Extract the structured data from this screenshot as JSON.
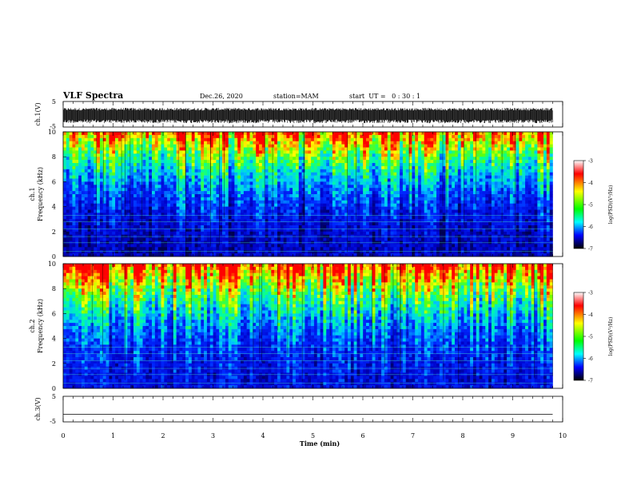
{
  "header": {
    "title": "VLF Spectra",
    "date": "Dec.26, 2020",
    "station": "station=MAM",
    "start": "start  UT =   0 : 30 : 1"
  },
  "colorbar": {
    "label": "log(PSD)(V²/Hz)",
    "ticks": [
      "-3",
      "-4",
      "-5",
      "-6",
      "-7"
    ],
    "colors": [
      "#ffffff",
      "#ff0000",
      "#ffff00",
      "#00ff00",
      "#00ffff",
      "#0000ff",
      "#000000"
    ]
  },
  "chart_data": [
    {
      "type": "line",
      "panel": "ch1-waveform",
      "ylabel": "ch.1(V)",
      "ylim": [
        -5,
        5
      ],
      "y_ticks": [
        "5",
        "-5"
      ],
      "x_ticks": [
        "0",
        "1",
        "2",
        "3",
        "4",
        "5",
        "6",
        "7",
        "8",
        "9",
        "10"
      ],
      "xlim": [
        0,
        10
      ],
      "data_end_min": 9.8,
      "amplitude_range": [
        -3.5,
        2.5
      ]
    },
    {
      "type": "heatmap",
      "panel": "ch1-spectrogram",
      "ylabel_channel": "ch.1",
      "ylabel": "Frequency (kHz)",
      "ylim": [
        0,
        10
      ],
      "y_ticks": [
        "0",
        "2",
        "4",
        "6",
        "8",
        "10"
      ],
      "xlim": [
        0,
        10
      ],
      "data_end_min": 9.8,
      "z_range": [
        -7,
        -3
      ]
    },
    {
      "type": "heatmap",
      "panel": "ch2-spectrogram",
      "ylabel_channel": "ch.2",
      "ylabel": "Frequency (kHz)",
      "ylim": [
        0,
        10
      ],
      "y_ticks": [
        "0",
        "2",
        "4",
        "6",
        "8",
        "10"
      ],
      "xlim": [
        0,
        10
      ],
      "data_end_min": 9.8,
      "z_range": [
        -7,
        -3
      ]
    },
    {
      "type": "line",
      "panel": "ch3-waveform",
      "ylabel": "ch.3(V)",
      "ylim": [
        -5,
        5
      ],
      "y_ticks": [
        "5",
        "-5"
      ],
      "x_ticks": [
        "0",
        "1",
        "2",
        "3",
        "4",
        "5",
        "6",
        "7",
        "8",
        "9",
        "10"
      ],
      "xlabel": "Time (min)",
      "xlim": [
        0,
        10
      ],
      "data_end_min": 9.8,
      "constant_value": -2
    }
  ]
}
